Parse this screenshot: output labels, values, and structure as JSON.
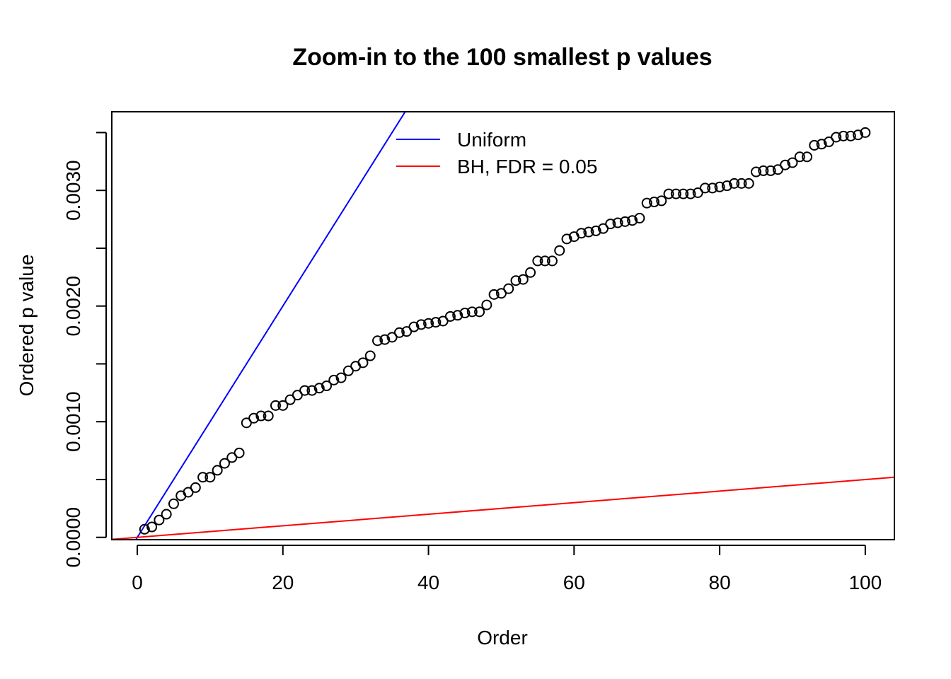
{
  "chart_data": {
    "type": "scatter",
    "title": "Zoom-in to the 100 smallest p values",
    "xlabel": "Order",
    "ylabel": "Ordered p value",
    "xlim": [
      -3.5,
      104
    ],
    "ylim": [
      -2e-05,
      0.00368
    ],
    "x_ticks": [
      0,
      20,
      40,
      60,
      80,
      100
    ],
    "x_tick_labels": [
      "0",
      "20",
      "40",
      "60",
      "80",
      "100"
    ],
    "y_ticks": [
      0,
      0.0005,
      0.001,
      0.0015,
      0.002,
      0.0025,
      0.003,
      0.0035
    ],
    "y_tick_labels": [
      "0.0000",
      "",
      "0.0010",
      "",
      "0.0020",
      "",
      "0.0030",
      ""
    ],
    "grid": false,
    "legend": {
      "position": "top",
      "entries": [
        {
          "label": "Uniform",
          "color": "#0000ff"
        },
        {
          "label": "BH, FDR = 0.05",
          "color": "#ff0000"
        }
      ]
    },
    "points": {
      "marker": "open-circle",
      "color": "#000000",
      "x": [
        1,
        2,
        3,
        4,
        5,
        6,
        7,
        8,
        9,
        10,
        11,
        12,
        13,
        14,
        15,
        16,
        17,
        18,
        19,
        20,
        21,
        22,
        23,
        24,
        25,
        26,
        27,
        28,
        29,
        30,
        31,
        32,
        33,
        34,
        35,
        36,
        37,
        38,
        39,
        40,
        41,
        42,
        43,
        44,
        45,
        46,
        47,
        48,
        49,
        50,
        51,
        52,
        53,
        54,
        55,
        56,
        57,
        58,
        59,
        60,
        61,
        62,
        63,
        64,
        65,
        66,
        67,
        68,
        69,
        70,
        71,
        72,
        73,
        74,
        75,
        76,
        77,
        78,
        79,
        80,
        81,
        82,
        83,
        84,
        85,
        86,
        87,
        88,
        89,
        90,
        91,
        92,
        93,
        94,
        95,
        96,
        97,
        98,
        99,
        100
      ],
      "y": [
        7e-05,
        9e-05,
        0.00015,
        0.0002,
        0.00029,
        0.00036,
        0.00039,
        0.00043,
        0.00052,
        0.00052,
        0.00058,
        0.00064,
        0.00069,
        0.00073,
        0.00099,
        0.00103,
        0.00105,
        0.00105,
        0.00114,
        0.00114,
        0.00119,
        0.00123,
        0.00127,
        0.00127,
        0.00129,
        0.00131,
        0.00136,
        0.00138,
        0.00144,
        0.00148,
        0.00151,
        0.00157,
        0.0017,
        0.00171,
        0.00173,
        0.00177,
        0.00178,
        0.00182,
        0.00184,
        0.00185,
        0.00186,
        0.00187,
        0.00191,
        0.00192,
        0.00194,
        0.00195,
        0.00195,
        0.00201,
        0.0021,
        0.00211,
        0.00215,
        0.00222,
        0.00223,
        0.00229,
        0.00239,
        0.00239,
        0.00239,
        0.00248,
        0.00258,
        0.0026,
        0.00263,
        0.00264,
        0.00265,
        0.00267,
        0.00271,
        0.00272,
        0.00273,
        0.00274,
        0.00276,
        0.00289,
        0.0029,
        0.00291,
        0.00297,
        0.00297,
        0.00297,
        0.00297,
        0.00298,
        0.00302,
        0.00302,
        0.00303,
        0.00304,
        0.00306,
        0.00306,
        0.00306,
        0.00316,
        0.00317,
        0.00317,
        0.00318,
        0.00322,
        0.00324,
        0.00329,
        0.00329,
        0.00339,
        0.0034,
        0.00342,
        0.00346,
        0.00347,
        0.00347,
        0.00348,
        0.0035
      ]
    },
    "lines": [
      {
        "name": "Uniform",
        "color": "#0000ff",
        "slope": 0.0001,
        "intercept": 0
      },
      {
        "name": "BH, FDR = 0.05",
        "color": "#ff0000",
        "slope": 5e-06,
        "intercept": 0
      }
    ]
  }
}
